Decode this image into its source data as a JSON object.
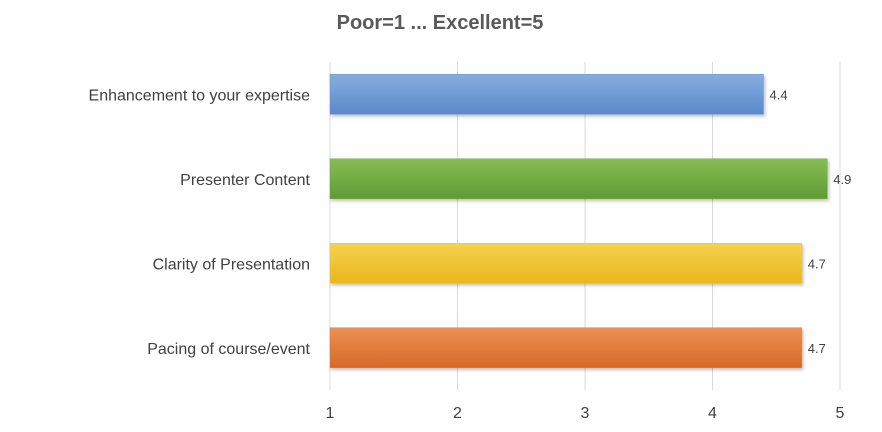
{
  "chart_data": {
    "type": "bar",
    "orientation": "horizontal",
    "title": "Poor=1 ... Excellent=5",
    "categories": [
      "Enhancement to your expertise",
      "Presenter Content",
      "Clarity of Presentation",
      "Pacing of course/event"
    ],
    "values": [
      4.4,
      4.9,
      4.7,
      4.7
    ],
    "value_labels": [
      "4.4",
      "4.9",
      "4.7",
      "4.7"
    ],
    "bar_colors": [
      "#6f9bd5",
      "#74ad44",
      "#f3c62f",
      "#e47c3c"
    ],
    "xlim": [
      1,
      5
    ],
    "xticks": [
      1,
      2,
      3,
      4,
      5
    ],
    "xtick_labels": [
      "1",
      "2",
      "3",
      "4",
      "5"
    ],
    "xlabel": "",
    "ylabel": "",
    "grid": true,
    "legend": "none"
  }
}
